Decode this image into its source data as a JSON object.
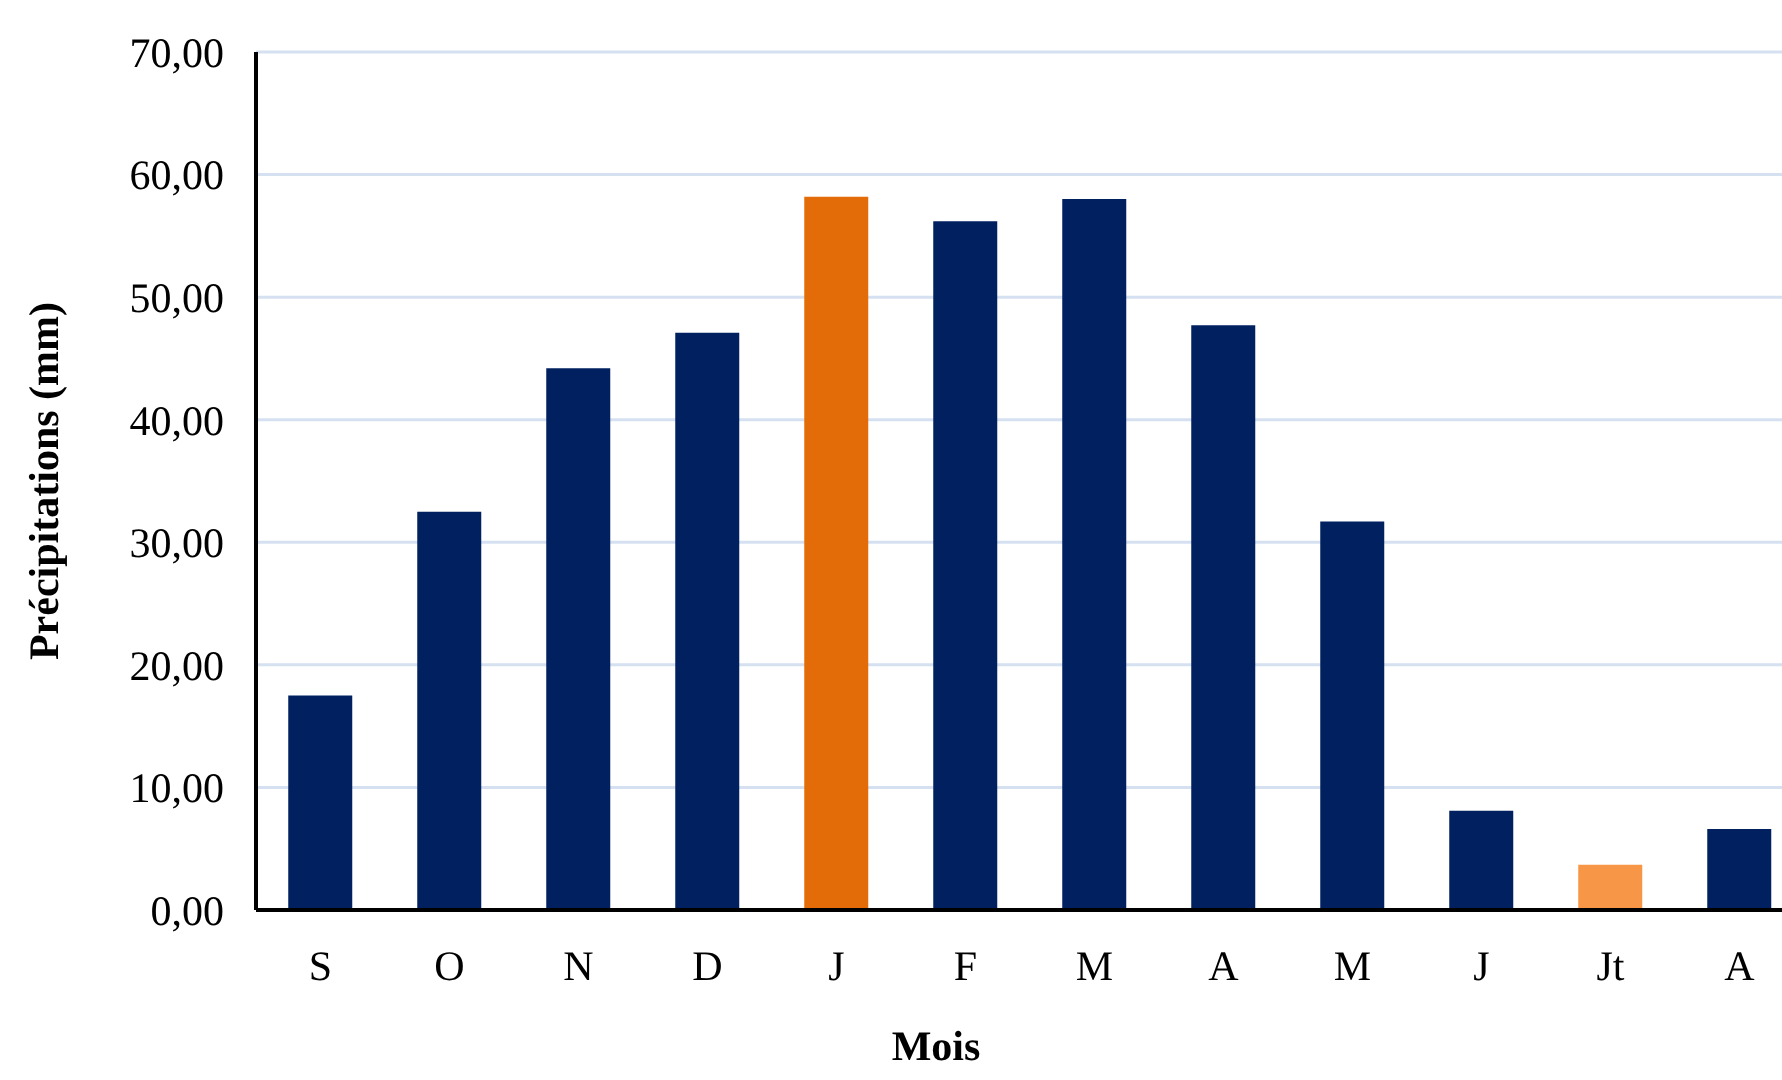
{
  "chart_data": {
    "type": "bar",
    "xlabel": "Mois",
    "ylabel": "Précipitations (mm)",
    "categories": [
      "S",
      "O",
      "N",
      "D",
      "J",
      "F",
      "M",
      "A",
      "M",
      "J",
      "Jt",
      "A"
    ],
    "values": [
      17.5,
      32.5,
      44.2,
      47.1,
      58.2,
      56.2,
      58.0,
      47.7,
      31.7,
      8.1,
      3.7,
      6.6
    ],
    "colors": [
      "#002060",
      "#002060",
      "#002060",
      "#002060",
      "#e36c09",
      "#002060",
      "#002060",
      "#002060",
      "#002060",
      "#002060",
      "#f79646",
      "#002060"
    ],
    "ylim": [
      0,
      70
    ],
    "yticks": [
      {
        "value": 0,
        "label": "0,00"
      },
      {
        "value": 10,
        "label": "10,00"
      },
      {
        "value": 20,
        "label": "20,00"
      },
      {
        "value": 30,
        "label": "30,00"
      },
      {
        "value": 40,
        "label": "40,00"
      },
      {
        "value": 50,
        "label": "50,00"
      },
      {
        "value": 60,
        "label": "60,00"
      },
      {
        "value": 70,
        "label": "70,00"
      }
    ],
    "grid": "y"
  }
}
